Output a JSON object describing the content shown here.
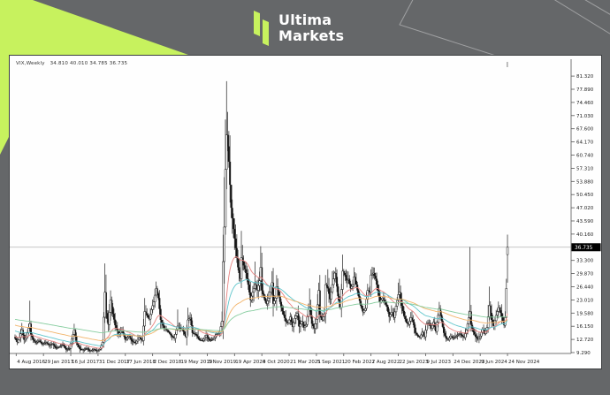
{
  "theme": {
    "accent": "#c7f25e",
    "header_bg": "#656769",
    "panel_bg": "#fefefe",
    "axis_text": "#1c1c1c",
    "price_line": "#b5b5b5",
    "bar_color": "#141414"
  },
  "header": {
    "brand_line1": "Ultima",
    "brand_line2": "Markets"
  },
  "chart": {
    "title_text": "VIX,Weekly   34.810 40.010 34.785 36.735"
  },
  "chart_data": {
    "type": "candlestick",
    "symbol": "VIX",
    "timeframe": "Weekly",
    "title": "VIX,Weekly",
    "ohlc": {
      "open": "34.810",
      "high": "40.010",
      "low": "34.785",
      "close": "36.735"
    },
    "current_price": "36.735",
    "price_line_value": 36.735,
    "y_axis": {
      "min": 9.29,
      "max": 85.3,
      "tick_step": 3.43,
      "ticks": [
        81.32,
        77.89,
        74.46,
        71.03,
        67.6,
        64.17,
        60.74,
        57.31,
        53.88,
        50.45,
        47.02,
        43.59,
        40.16,
        33.3,
        29.87,
        26.44,
        23.01,
        19.58,
        16.15,
        12.72,
        9.29
      ]
    },
    "x_axis": {
      "tick_week_start": 1,
      "tick_week_step": 24,
      "labels": [
        "4 Aug 2016",
        "29 Jan 2017",
        "16 Jul 2017",
        "31 Dec 2017",
        "17 Jun 2018",
        "2 Dec 2018",
        "19 May 2019",
        "3 Nov 2019",
        "19 Apr 2020",
        "4 Oct 2020",
        "21 Mar 2021",
        "5 Sep 2021",
        "20 Feb 2022",
        "7 Aug 2022",
        "22 Jan 2023",
        "9 Jul 2023",
        "24 Dec 2023",
        "9 Jun 2024",
        "24 Nov 2024"
      ]
    },
    "weeks_total": 434,
    "legend": "none",
    "grid": "price-line-only",
    "moving_averages": [
      {
        "name": "ma-fast",
        "color": "#e88381",
        "period": 26,
        "seed_offset": 0.5
      },
      {
        "name": "ma-medium",
        "color": "#5fc6cc",
        "period": 52,
        "seed_offset": 2.0
      },
      {
        "name": "ma-slow",
        "color": "#f2b46a",
        "period": 104,
        "seed_offset": 3.5
      },
      {
        "name": "ma-slowest",
        "color": "#86cd9f",
        "period": 200,
        "seed_offset": 5.0
      }
    ],
    "close_anchors": [
      [
        0,
        13
      ],
      [
        2,
        12
      ],
      [
        4,
        13.2,
        14.5
      ],
      [
        6,
        15.2,
        17
      ],
      [
        8,
        12.6
      ],
      [
        10,
        13.4
      ],
      [
        13,
        16.8,
        22.8
      ],
      [
        14,
        14
      ],
      [
        16,
        12.6
      ],
      [
        18,
        11.8
      ],
      [
        21,
        12.4
      ],
      [
        24,
        11.4
      ],
      [
        27,
        12
      ],
      [
        30,
        11.2
      ],
      [
        33,
        11.6
      ],
      [
        36,
        10.4
      ],
      [
        39,
        10.8
      ],
      [
        42,
        11.4
      ],
      [
        45,
        10
      ],
      [
        48,
        10.4
      ],
      [
        52,
        15.2,
        16.8
      ],
      [
        54,
        11.8
      ],
      [
        57,
        10.2
      ],
      [
        60,
        10
      ],
      [
        63,
        10.4
      ],
      [
        66,
        9.6
      ],
      [
        69,
        10.2
      ],
      [
        72,
        9.6
      ],
      [
        75,
        10.4
      ],
      [
        77,
        12
      ],
      [
        79,
        25,
        32.5
      ],
      [
        80,
        19.6
      ],
      [
        82,
        16.6
      ],
      [
        84,
        23,
        25.5
      ],
      [
        86,
        19.4
      ],
      [
        88,
        16.4
      ],
      [
        91,
        14
      ],
      [
        94,
        15.2
      ],
      [
        97,
        12.6
      ],
      [
        100,
        13.6
      ],
      [
        103,
        12.2
      ],
      [
        106,
        11.8
      ],
      [
        109,
        13.2
      ],
      [
        112,
        12.4
      ],
      [
        114,
        20,
        23.5
      ],
      [
        116,
        19
      ],
      [
        118,
        18
      ],
      [
        120,
        20.5
      ],
      [
        122,
        22.5
      ],
      [
        124,
        26,
        27.8
      ],
      [
        126,
        23.5
      ],
      [
        128,
        17.8
      ],
      [
        131,
        15.6
      ],
      [
        134,
        15
      ],
      [
        137,
        13.8
      ],
      [
        140,
        13
      ],
      [
        143,
        16.2,
        20.5
      ],
      [
        145,
        15.6
      ],
      [
        147,
        15.4
      ],
      [
        150,
        13.4
      ],
      [
        152,
        17.8,
        21
      ],
      [
        154,
        18.4
      ],
      [
        156,
        14.4
      ],
      [
        159,
        14
      ],
      [
        162,
        12.6
      ],
      [
        165,
        12.4
      ],
      [
        168,
        13.8
      ],
      [
        171,
        12.4
      ],
      [
        174,
        12.8
      ],
      [
        177,
        14
      ],
      [
        180,
        14.6
      ],
      [
        182,
        17.5,
        20
      ],
      [
        183,
        33,
        40
      ],
      [
        184,
        42,
        55
      ],
      [
        185,
        57,
        70
      ],
      [
        186,
        66,
        80
      ],
      [
        187,
        63,
        72
      ],
      [
        188,
        59,
        67
      ],
      [
        190,
        47,
        53
      ],
      [
        192,
        41.5
      ],
      [
        194,
        36.5
      ],
      [
        196,
        31.5
      ],
      [
        198,
        28.5
      ],
      [
        199,
        34,
        41
      ],
      [
        201,
        32
      ],
      [
        203,
        30
      ],
      [
        205,
        27
      ],
      [
        207,
        23
      ],
      [
        209,
        25
      ],
      [
        211,
        27,
        33
      ],
      [
        213,
        25.5
      ],
      [
        215,
        28
      ],
      [
        216,
        31.5,
        37
      ],
      [
        217,
        25.5
      ],
      [
        219,
        23.5
      ],
      [
        221,
        22
      ],
      [
        223,
        23.5
      ],
      [
        225,
        26.5
      ],
      [
        226,
        27.5,
        30.5
      ],
      [
        227,
        22
      ],
      [
        229,
        23.5
      ],
      [
        230,
        26.5,
        29.5
      ],
      [
        232,
        24
      ],
      [
        234,
        21
      ],
      [
        236,
        19.2
      ],
      [
        238,
        17.4
      ],
      [
        240,
        17
      ],
      [
        242,
        18.6
      ],
      [
        244,
        16
      ],
      [
        246,
        18.2
      ],
      [
        248,
        19.5
      ],
      [
        250,
        16
      ],
      [
        252,
        17.4
      ],
      [
        254,
        15.8
      ],
      [
        256,
        16.6
      ],
      [
        258,
        20.5
      ],
      [
        259,
        21,
        26
      ],
      [
        261,
        16.8
      ],
      [
        263,
        15.6
      ],
      [
        265,
        18
      ],
      [
        267,
        25.5,
        27.5
      ],
      [
        268,
        19
      ],
      [
        270,
        17.8
      ],
      [
        272,
        19.4
      ],
      [
        273,
        27,
        29.5
      ],
      [
        275,
        26,
        31
      ],
      [
        277,
        23.2
      ],
      [
        279,
        27,
        30.5
      ],
      [
        281,
        30
      ],
      [
        282,
        29,
        31.5
      ],
      [
        284,
        24
      ],
      [
        286,
        21
      ],
      [
        288,
        30.5
      ],
      [
        290,
        29.5
      ],
      [
        291,
        28,
        31
      ],
      [
        293,
        28.5
      ],
      [
        295,
        26
      ],
      [
        297,
        27
      ],
      [
        298,
        29,
        31.5
      ],
      [
        300,
        27
      ],
      [
        302,
        24
      ],
      [
        304,
        21.5
      ],
      [
        306,
        19.8
      ],
      [
        308,
        20.8
      ],
      [
        310,
        25.5
      ],
      [
        312,
        25
      ],
      [
        313,
        29.5,
        31
      ],
      [
        315,
        30,
        31.5
      ],
      [
        317,
        28.5
      ],
      [
        319,
        25.5
      ],
      [
        321,
        22.5
      ],
      [
        323,
        23.5
      ],
      [
        325,
        22.4
      ],
      [
        327,
        21.2
      ],
      [
        329,
        18.6
      ],
      [
        331,
        19.8
      ],
      [
        333,
        18.4
      ],
      [
        335,
        21.4
      ],
      [
        337,
        24.4,
        27.5
      ],
      [
        338,
        25,
        28.5
      ],
      [
        340,
        21.5
      ],
      [
        342,
        18.8
      ],
      [
        344,
        17.2
      ],
      [
        346,
        16.6
      ],
      [
        348,
        18.4
      ],
      [
        350,
        17.2
      ],
      [
        352,
        14.4
      ],
      [
        354,
        13.6
      ],
      [
        356,
        13.2
      ],
      [
        358,
        14.6
      ],
      [
        360,
        13.4
      ],
      [
        362,
        16.8
      ],
      [
        364,
        17
      ],
      [
        366,
        15.6
      ],
      [
        368,
        17.2
      ],
      [
        370,
        14.8
      ],
      [
        371,
        17.2
      ],
      [
        373,
        20.8,
        22.5
      ],
      [
        375,
        17.6
      ],
      [
        377,
        14.4
      ],
      [
        379,
        13
      ],
      [
        381,
        12.6
      ],
      [
        383,
        13.6
      ],
      [
        385,
        13
      ],
      [
        387,
        13.4
      ],
      [
        389,
        13.8
      ],
      [
        391,
        14.2
      ],
      [
        393,
        13.6
      ],
      [
        395,
        13.2
      ],
      [
        397,
        15.2
      ],
      [
        400,
        20,
        36.8
      ],
      [
        401,
        16.5
      ],
      [
        403,
        14.6
      ],
      [
        405,
        13.4
      ],
      [
        407,
        12.8
      ],
      [
        409,
        13.6
      ],
      [
        411,
        15.4
      ],
      [
        413,
        14.2
      ],
      [
        415,
        15.8
      ],
      [
        417,
        21.5,
        26.5
      ],
      [
        419,
        17.8
      ],
      [
        421,
        16.2
      ],
      [
        423,
        19
      ],
      [
        425,
        21
      ],
      [
        427,
        19.6
      ],
      [
        429,
        17.4
      ],
      [
        430,
        16.4
      ],
      [
        431,
        18.4
      ],
      [
        432,
        26,
        28.5,
        19.5
      ],
      [
        433,
        36.735,
        40.01,
        27.5,
        34.81
      ]
    ]
  }
}
